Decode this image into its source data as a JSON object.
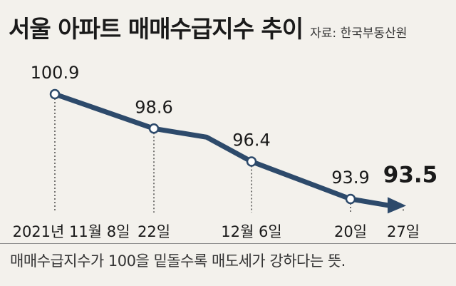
{
  "title": "서울 아파트 매매수급지수 추이",
  "source": "자료: 한국부동산원",
  "footnote": "매매수급지수가 100을 밑돌수록 매도세가 강하다는 뜻.",
  "colors": {
    "line": "#2d4a6b",
    "background": "#f3f1ec",
    "text": "#1a1a1a"
  },
  "chart_data": {
    "type": "line",
    "title": "서울 아파트 매매수급지수 추이",
    "categories": [
      "2021년 11월 8일",
      "22일",
      "12월 6일",
      "20일",
      "27일"
    ],
    "values": [
      100.9,
      98.6,
      96.4,
      93.9,
      93.5
    ],
    "value_labels": [
      "100.9",
      "98.6",
      "96.4",
      "93.9",
      "93.5"
    ],
    "xlabel": "",
    "ylabel": "",
    "grid": false,
    "legend": "none"
  }
}
